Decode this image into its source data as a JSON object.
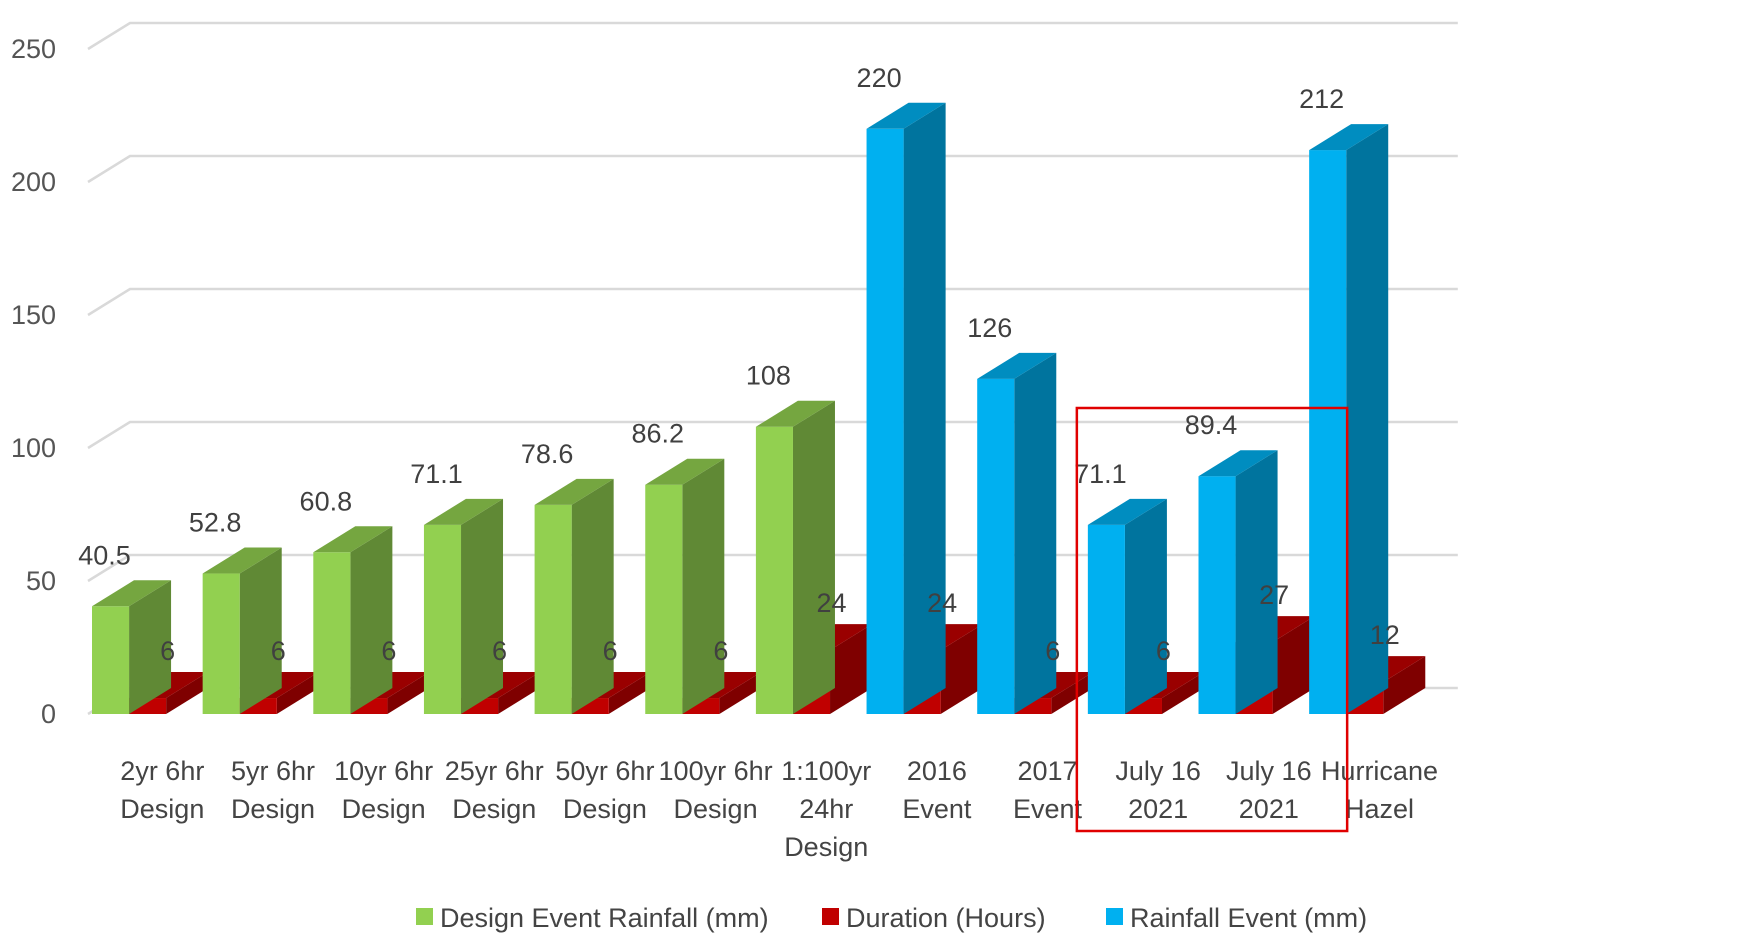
{
  "chart_data": {
    "type": "bar",
    "ylim": [
      0,
      250
    ],
    "yticks": [
      "0",
      "50",
      "100",
      "150",
      "200",
      "250"
    ],
    "grid": true,
    "legend_position": "bottom",
    "categories": [
      [
        "2yr 6hr",
        "Design"
      ],
      [
        "5yr 6hr",
        "Design"
      ],
      [
        "10yr 6hr",
        "Design"
      ],
      [
        "25yr 6hr",
        "Design"
      ],
      [
        "50yr 6hr",
        "Design"
      ],
      [
        "100yr 6hr",
        "Design"
      ],
      [
        "1:100yr",
        "24hr",
        "Design"
      ],
      [
        "2016",
        "Event"
      ],
      [
        "2017",
        "Event"
      ],
      [
        "July 16",
        "2021"
      ],
      [
        "July 16",
        "2021"
      ],
      [
        "Hurricane",
        "Hazel"
      ]
    ],
    "series": [
      {
        "name": "Design Event Rainfall (mm)",
        "color": "#92D050",
        "values": [
          40.5,
          52.8,
          60.8,
          71.1,
          78.6,
          86.2,
          108,
          null,
          null,
          null,
          null,
          null
        ],
        "labels": [
          "40.5",
          "52.8",
          "60.8",
          "71.1",
          "78.6",
          "86.2",
          "108",
          "",
          "",
          "",
          "",
          ""
        ]
      },
      {
        "name": "Duration (Hours)",
        "color": "#C00000",
        "values": [
          6,
          6,
          6,
          6,
          6,
          6,
          24,
          24,
          6,
          6,
          27,
          12
        ],
        "labels": [
          "6",
          "6",
          "6",
          "6",
          "6",
          "6",
          "24",
          "24",
          "6",
          "6",
          "27",
          "12"
        ]
      },
      {
        "name": "Rainfall Event (mm)",
        "color": "#00B0F0",
        "values": [
          null,
          null,
          null,
          null,
          null,
          null,
          null,
          220,
          126,
          71.1,
          89.4,
          212
        ],
        "labels": [
          "",
          "",
          "",
          "",
          "",
          "",
          "",
          "220",
          "126",
          "71.1",
          "89.4",
          "212"
        ]
      }
    ],
    "highlight_box": {
      "categories": [
        9,
        10
      ],
      "color": "#E00000"
    }
  }
}
